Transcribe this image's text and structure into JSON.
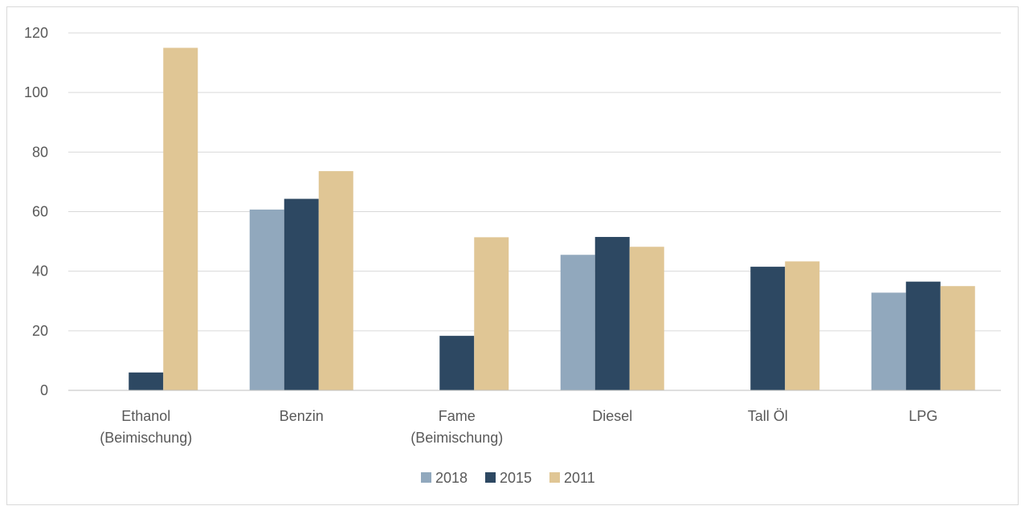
{
  "chart_data": {
    "type": "bar",
    "title": "",
    "xlabel": "",
    "ylabel": "",
    "ylim": [
      0,
      120
    ],
    "yticks": [
      "0",
      "20",
      "40",
      "60",
      "80",
      "100",
      "120"
    ],
    "grid": true,
    "legend_position": "bottom",
    "categories": [
      [
        "Ethanol",
        "(Beimischung)"
      ],
      [
        "Benzin"
      ],
      [
        "Fame",
        "(Beimischung)"
      ],
      [
        "Diesel"
      ],
      [
        "Tall Öl"
      ],
      [
        "LPG"
      ]
    ],
    "series": [
      {
        "name": "2018",
        "color": "#91a8bd",
        "values": [
          null,
          60.7,
          null,
          45.5,
          null,
          32.8
        ]
      },
      {
        "name": "2015",
        "color": "#2d4862",
        "values": [
          6.0,
          64.3,
          18.3,
          51.5,
          41.5,
          36.5
        ]
      },
      {
        "name": "2011",
        "color": "#e0c695",
        "values": [
          115,
          73.6,
          51.4,
          48.2,
          43.3,
          35.0
        ]
      }
    ],
    "gridline_color": "#d9d9d9",
    "axis_color": "#bfbfbf"
  }
}
